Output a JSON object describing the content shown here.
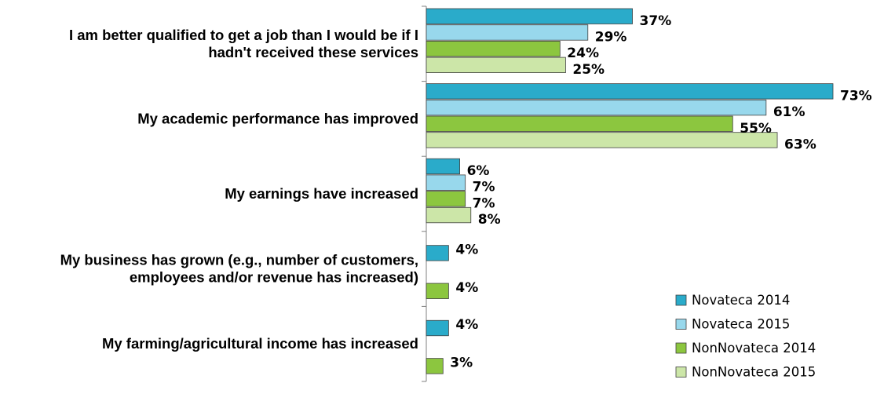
{
  "chart_data": {
    "type": "bar",
    "orientation": "horizontal",
    "categories": [
      [
        "I am better qualified to get a job than I would be if I",
        "hadn't received these services"
      ],
      [
        "My academic performance has improved"
      ],
      [
        "My earnings have increased"
      ],
      [
        "My business has grown (e.g., number of customers,",
        "employees and/or revenue has increased)"
      ],
      [
        "My farming/agricultural income has increased"
      ]
    ],
    "series": [
      {
        "name": "Novateca 2014",
        "color": "#2AABCA",
        "values": [
          37,
          73,
          6,
          4,
          4
        ]
      },
      {
        "name": "Novateca 2015",
        "color": "#98D8EC",
        "values": [
          29,
          61,
          7,
          null,
          null
        ]
      },
      {
        "name": "NonNovateca 2014",
        "color": "#8CC63F",
        "values": [
          24,
          55,
          7,
          4,
          3
        ]
      },
      {
        "name": "NonNovateca 2015",
        "color": "#CCE6A8",
        "values": [
          25,
          63,
          8,
          null,
          null
        ]
      }
    ],
    "value_suffix": "%",
    "xlim": [
      0,
      73
    ],
    "grid": false,
    "legend_position": "bottom-right"
  }
}
